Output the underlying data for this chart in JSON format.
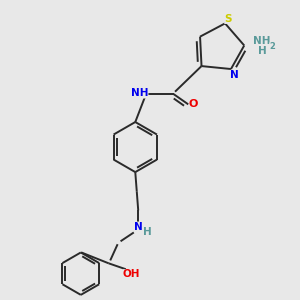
{
  "bg_color": "#e8e8e8",
  "bond_color": "#2a2a2a",
  "bond_width": 1.4,
  "atom_colors": {
    "N": "#0000ee",
    "O": "#ee0000",
    "S": "#cccc00",
    "NH": "#5a9a9a",
    "H": "#5a9a9a"
  },
  "font_size": 7.0,
  "fig_w": 3.0,
  "fig_h": 3.0,
  "dpi": 100,
  "xlim": [
    0,
    10
  ],
  "ylim": [
    0,
    10
  ]
}
